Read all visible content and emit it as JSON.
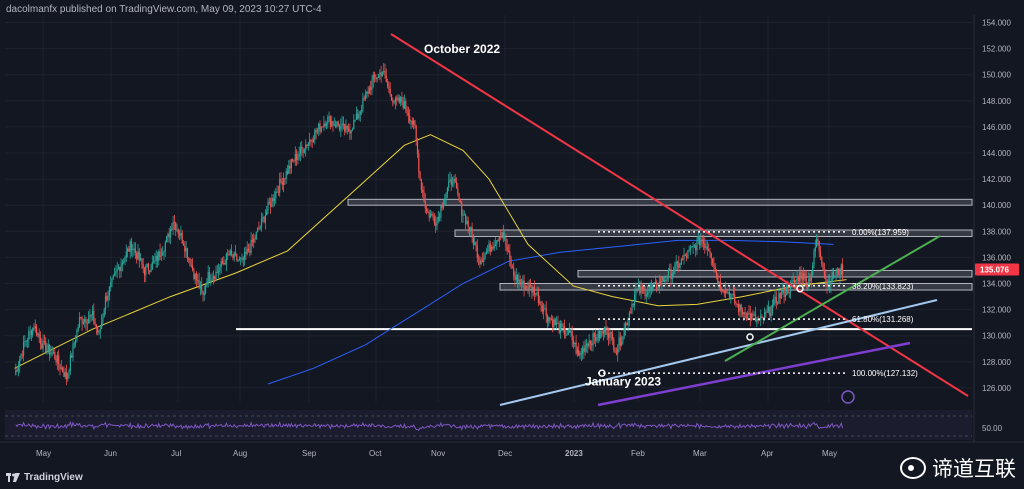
{
  "header": {
    "text": "dacolmanfx published on TradingView.com, May 09, 2023 10:27 UTC-4"
  },
  "branding": {
    "logo_text": "TradingView",
    "watermark_text": "谛道互联"
  },
  "colors": {
    "background": "#131722",
    "candle_up": "#26a69a",
    "candle_down": "#ef5350",
    "ma_fast": "#e8d33b",
    "ma_slow": "#2962ff",
    "trend_down": "#f23645",
    "channel_lower": "#a5c8ef",
    "channel_purple": "#7e3fd0",
    "trend_green": "#4caf50",
    "rsi": "#7e57c2",
    "price_tag_bg": "#f23645"
  },
  "chart_data": {
    "type": "candlestick",
    "symbol_price_axis": {
      "ylim": [
        125,
        154
      ],
      "ticks": [
        "154.000",
        "152.000",
        "150.000",
        "148.000",
        "146.000",
        "144.000",
        "142.000",
        "140.000",
        "138.000",
        "136.000",
        "134.000",
        "132.000",
        "130.000",
        "128.000",
        "126.000"
      ]
    },
    "current_price": "135.076",
    "x_axis_labels": [
      "May",
      "Jun",
      "Jul",
      "Aug",
      "Sep",
      "Oct",
      "Nov",
      "Dec",
      "2023",
      "Feb",
      "Mar",
      "Apr",
      "May"
    ],
    "annotations": [
      {
        "text": "October 2022",
        "price": 151.9
      },
      {
        "text": "January 2023",
        "price": 126.4
      }
    ],
    "fibonacci": [
      {
        "label": "0.00%(137.959)",
        "price": 137.959
      },
      {
        "label": "38.20%(133.823)",
        "price": 133.823
      },
      {
        "label": "61.80%(131.268)",
        "price": 131.268
      },
      {
        "label": "100.00%(127.132)",
        "price": 127.132
      }
    ],
    "horizontal_zones": [
      {
        "from": 140.0,
        "to": 140.45
      },
      {
        "from": 137.6,
        "to": 138.1
      },
      {
        "from": 134.5,
        "to": 135.0
      },
      {
        "from": 133.5,
        "to": 134.0
      }
    ],
    "support_line": {
      "price": 130.5
    },
    "rsi": {
      "label": "50.00"
    },
    "ohlc_waypoints": [
      [
        0,
        127.0
      ],
      [
        8,
        129.5
      ],
      [
        15,
        130.8
      ],
      [
        22,
        129.2
      ],
      [
        30,
        128.6
      ],
      [
        40,
        126.8
      ],
      [
        50,
        131.2
      ],
      [
        60,
        131.5
      ],
      [
        65,
        130.0
      ],
      [
        70,
        132.8
      ],
      [
        80,
        135.2
      ],
      [
        90,
        137.0
      ],
      [
        100,
        135.0
      ],
      [
        108,
        135.6
      ],
      [
        118,
        137.5
      ],
      [
        122,
        138.9
      ],
      [
        130,
        137.2
      ],
      [
        138,
        134.8
      ],
      [
        145,
        133.0
      ],
      [
        148,
        134.5
      ],
      [
        155,
        134.8
      ],
      [
        165,
        136.2
      ],
      [
        175,
        135.6
      ],
      [
        185,
        137.5
      ],
      [
        195,
        139.8
      ],
      [
        205,
        141.8
      ],
      [
        215,
        143.5
      ],
      [
        230,
        145.4
      ],
      [
        240,
        146.6
      ],
      [
        248,
        146.2
      ],
      [
        256,
        145.6
      ],
      [
        263,
        146.6
      ],
      [
        270,
        148.3
      ],
      [
        276,
        149.6
      ],
      [
        283,
        150.3
      ],
      [
        288,
        148.8
      ],
      [
        293,
        147.8
      ],
      [
        298,
        148.0
      ],
      [
        303,
        147.1
      ],
      [
        308,
        145.8
      ],
      [
        312,
        142.0
      ],
      [
        317,
        139.5
      ],
      [
        325,
        138.8
      ],
      [
        330,
        140.5
      ],
      [
        337,
        142.1
      ],
      [
        343,
        139.9
      ],
      [
        350,
        138.2
      ],
      [
        358,
        135.8
      ],
      [
        366,
        136.8
      ],
      [
        375,
        138.0
      ],
      [
        384,
        134.6
      ],
      [
        392,
        133.8
      ],
      [
        400,
        133.5
      ],
      [
        410,
        131.5
      ],
      [
        420,
        130.5
      ],
      [
        428,
        130.0
      ],
      [
        434,
        128.4
      ],
      [
        440,
        129.5
      ],
      [
        448,
        129.9
      ],
      [
        456,
        130.5
      ],
      [
        463,
        128.9
      ],
      [
        468,
        130.2
      ],
      [
        478,
        133.4
      ],
      [
        490,
        133.5
      ],
      [
        505,
        134.8
      ],
      [
        520,
        136.5
      ],
      [
        528,
        137.4
      ],
      [
        535,
        136.6
      ],
      [
        542,
        134.0
      ],
      [
        550,
        133.2
      ],
      [
        558,
        132.0
      ],
      [
        566,
        131.5
      ],
      [
        573,
        131.0
      ],
      [
        580,
        131.8
      ],
      [
        588,
        133.0
      ],
      [
        594,
        133.5
      ],
      [
        600,
        134.1
      ],
      [
        605,
        134.8
      ],
      [
        610,
        134.0
      ],
      [
        613,
        134.8
      ],
      [
        617,
        137.4
      ],
      [
        621,
        135.8
      ],
      [
        625,
        134.0
      ],
      [
        630,
        134.6
      ],
      [
        637,
        135.1
      ]
    ],
    "moving_average_fast": [
      [
        0,
        127.5
      ],
      [
        60,
        130.5
      ],
      [
        120,
        133.0
      ],
      [
        170,
        134.8
      ],
      [
        210,
        136.5
      ],
      [
        260,
        141.0
      ],
      [
        300,
        144.6
      ],
      [
        320,
        145.4
      ],
      [
        345,
        144.2
      ],
      [
        365,
        142.0
      ],
      [
        395,
        137.0
      ],
      [
        430,
        133.8
      ],
      [
        460,
        133.0
      ],
      [
        495,
        132.3
      ],
      [
        525,
        132.4
      ],
      [
        560,
        133.0
      ],
      [
        600,
        133.8
      ],
      [
        640,
        134.3
      ]
    ],
    "moving_average_slow": [
      [
        195,
        126.3
      ],
      [
        230,
        127.5
      ],
      [
        270,
        129.3
      ],
      [
        310,
        131.8
      ],
      [
        345,
        134.0
      ],
      [
        380,
        135.7
      ],
      [
        420,
        136.4
      ],
      [
        470,
        136.9
      ],
      [
        510,
        137.3
      ],
      [
        550,
        137.3
      ],
      [
        590,
        137.2
      ],
      [
        630,
        137.0
      ]
    ]
  }
}
